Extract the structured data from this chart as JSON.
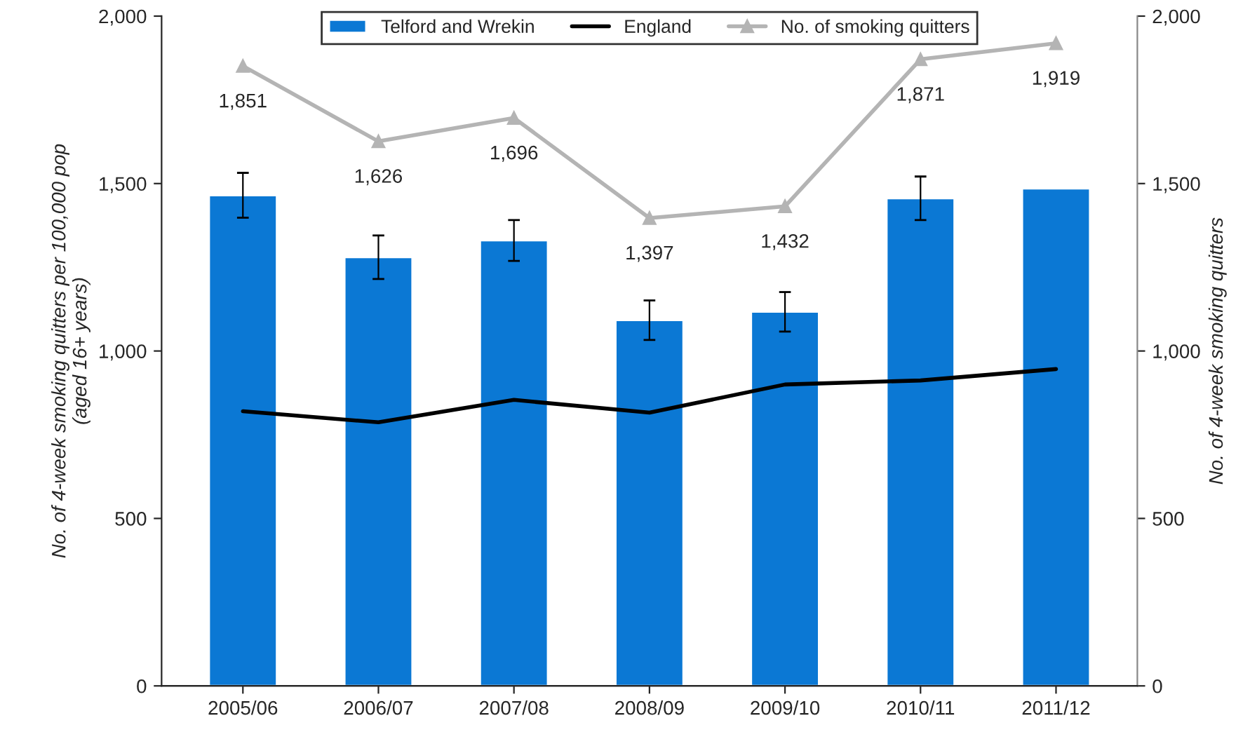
{
  "chart_data": {
    "type": "bar",
    "categories": [
      "2005/06",
      "2006/07",
      "2007/08",
      "2008/09",
      "2009/10",
      "2010/11",
      "2011/12"
    ],
    "ylabel": "No. of 4-week smoking quitters per 100,000 pop\n(aged 16+ years)",
    "y2label": "No. of 4-week smoking quitters",
    "ylim": [
      0,
      2000
    ],
    "yticks": [
      0,
      {
        "value": 500,
        "label": "500"
      },
      {
        "value": 1000,
        "label": "1,000"
      },
      {
        "value": 1500,
        "label": "1,500"
      },
      {
        "value": 2000,
        "label": "2,000"
      }
    ],
    "y2lim": [
      0,
      2000
    ],
    "y2ticks": [
      0,
      {
        "value": 500,
        "label": "500"
      },
      {
        "value": 1000,
        "label": "1,000"
      },
      {
        "value": 1500,
        "label": "1,500"
      },
      {
        "value": 2000,
        "label": "2,000"
      }
    ],
    "grid": false,
    "legend": "top",
    "series": [
      {
        "name": "Telford and Wrekin",
        "color": "#0b78d4",
        "values": [
          1465,
          1280,
          1330,
          1092,
          1117,
          1456,
          1485
        ],
        "errors": [
          67,
          65,
          61,
          59,
          59,
          65,
          null
        ]
      },
      {
        "name": "England",
        "type": "line",
        "color": "#000000",
        "marker": "none",
        "values": [
          820,
          787,
          854,
          816,
          900,
          912,
          946
        ]
      },
      {
        "name": "No. of smoking quitters",
        "type": "line",
        "axis": "y2",
        "color": "#b4b4b4",
        "marker": "triangle",
        "values": [
          1851,
          1626,
          1696,
          1397,
          1432,
          1871,
          1919
        ],
        "value_labels": [
          "1,851",
          "1,626",
          "1,696",
          "1,397",
          "1,432",
          "1,871",
          "1,919"
        ]
      }
    ]
  }
}
